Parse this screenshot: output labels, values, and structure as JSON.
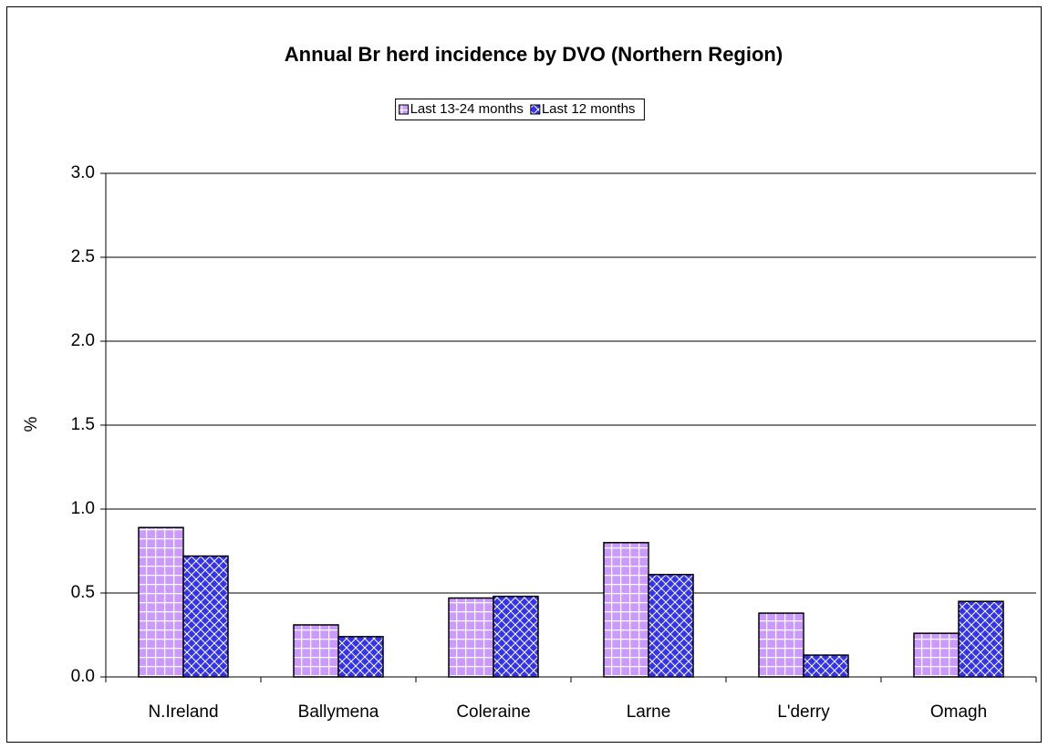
{
  "chart_data": {
    "type": "bar",
    "title": "Annual Br herd incidence by DVO (Northern Region)",
    "y_label": "%",
    "categories": [
      "N.Ireland",
      "Ballymena",
      "Coleraine",
      "Larne",
      "L'derry",
      "Omagh"
    ],
    "series": [
      {
        "name": "Last 13-24 months",
        "color": "#cc99ff",
        "values": [
          0.89,
          0.31,
          0.47,
          0.8,
          0.38,
          0.26
        ]
      },
      {
        "name": "Last 12 months",
        "color": "#3333ee",
        "values": [
          0.72,
          0.24,
          0.48,
          0.61,
          0.13,
          0.45
        ]
      }
    ],
    "ylim": [
      0,
      3
    ],
    "yticks": [
      {
        "value": 0,
        "label": "0.0"
      },
      0.5,
      {
        "value": 1,
        "label": "1.0"
      },
      1.5,
      {
        "value": 2,
        "label": "2.0"
      },
      2.5,
      {
        "value": 3,
        "label": "3.0"
      }
    ],
    "grid": true,
    "legend": "top"
  }
}
